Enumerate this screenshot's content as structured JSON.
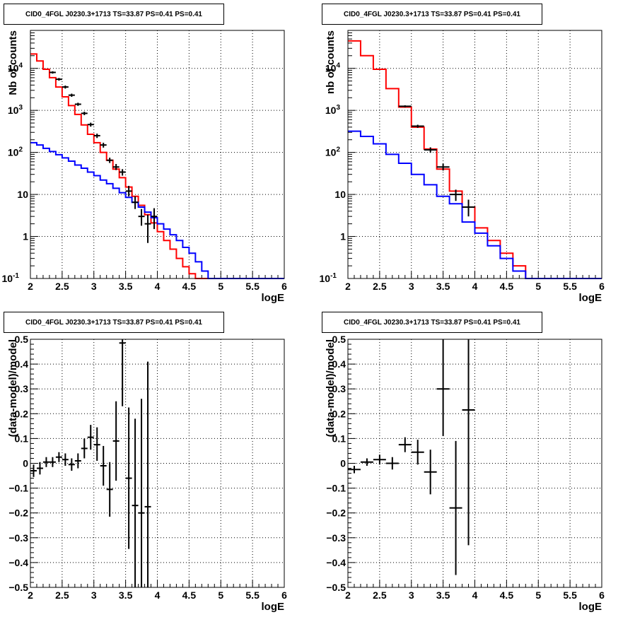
{
  "colors": {
    "data": "#000000",
    "model_total": "#ff0000",
    "model_component": "#0000ff",
    "grid": "#000000"
  },
  "chart_data": [
    {
      "type": "line",
      "title": "CID0_4FGL J0230.3+1713 TS=33.87 PS=0.41 PS=0.41",
      "xlabel": "logE",
      "ylabel": "Nb of counts",
      "xlim": [
        2,
        6
      ],
      "ylim": [
        0.1,
        80000
      ],
      "ylog": true,
      "grid": true,
      "x_ticks": [
        "2",
        "2.5",
        "3",
        "3.5",
        "4",
        "4.5",
        "5",
        "5.5",
        "6"
      ],
      "y_ticks": [
        {
          "v": 0.1,
          "label": "10",
          "exp": "-1"
        },
        {
          "v": 1,
          "label": "1"
        },
        {
          "v": 10,
          "label": "10"
        },
        {
          "v": 100,
          "label": "10",
          "exp": "2"
        },
        {
          "v": 1000,
          "label": "10",
          "exp": "3"
        },
        {
          "v": 10000,
          "label": "10",
          "exp": "4"
        }
      ],
      "bin_edges": [
        2.0,
        2.1,
        2.2,
        2.3,
        2.4,
        2.5,
        2.6,
        2.7,
        2.8,
        2.9,
        3.0,
        3.1,
        3.2,
        3.3,
        3.4,
        3.5,
        3.6,
        3.7,
        3.8,
        3.9,
        4.0,
        4.1,
        4.2,
        4.3,
        4.4,
        4.5,
        4.6,
        4.7,
        4.8,
        4.9,
        5.0,
        5.1,
        5.2,
        5.3,
        5.4,
        5.5,
        5.6,
        5.7,
        5.8,
        5.9,
        6.0
      ],
      "series": [
        {
          "role": "model_total",
          "values": [
            22000,
            15000,
            9500,
            6000,
            3600,
            2100,
            1300,
            800,
            450,
            270,
            170,
            100,
            65,
            40,
            25,
            15,
            9,
            5.5,
            3.3,
            2.1,
            1.3,
            0.8,
            0.5,
            0.3,
            0.19,
            0.13,
            0.1,
            0.1,
            0.1,
            0.1,
            0.1,
            0.1,
            0.1,
            0.1,
            0.1,
            0.1,
            0.1,
            0.1,
            0.1,
            0.1
          ]
        },
        {
          "role": "model_component",
          "values": [
            170,
            150,
            125,
            105,
            88,
            74,
            62,
            50,
            42,
            34,
            28,
            22,
            18,
            14,
            11,
            8.5,
            6.5,
            5,
            3.8,
            2.8,
            2,
            1.5,
            1.1,
            0.8,
            0.55,
            0.4,
            0.25,
            0.15,
            0.1,
            0.1,
            0.1,
            0.1,
            0.1,
            0.1,
            0.1,
            0.1,
            0.1,
            0.1,
            0.1,
            0.1
          ]
        },
        {
          "role": "data",
          "points": [
            {
              "x": 2.35,
              "y": 8000,
              "lo": 7500,
              "hi": 8500,
              "xw": 0.05
            },
            {
              "x": 2.45,
              "y": 5500,
              "lo": 5100,
              "hi": 5900,
              "xw": 0.05
            },
            {
              "x": 2.55,
              "y": 3600,
              "lo": 3300,
              "hi": 3900,
              "xw": 0.05
            },
            {
              "x": 2.65,
              "y": 2300,
              "lo": 2100,
              "hi": 2500,
              "xw": 0.05
            },
            {
              "x": 2.75,
              "y": 1400,
              "lo": 1280,
              "hi": 1520,
              "xw": 0.05
            },
            {
              "x": 2.85,
              "y": 850,
              "lo": 770,
              "hi": 930,
              "xw": 0.05
            },
            {
              "x": 2.95,
              "y": 460,
              "lo": 410,
              "hi": 510,
              "xw": 0.05
            },
            {
              "x": 3.05,
              "y": 250,
              "lo": 220,
              "hi": 280,
              "xw": 0.05
            },
            {
              "x": 3.15,
              "y": 150,
              "lo": 130,
              "hi": 170,
              "xw": 0.05
            },
            {
              "x": 3.25,
              "y": 65,
              "lo": 56,
              "hi": 75,
              "xw": 0.05
            },
            {
              "x": 3.35,
              "y": 45,
              "lo": 38,
              "hi": 53,
              "xw": 0.05
            },
            {
              "x": 3.45,
              "y": 34,
              "lo": 28,
              "hi": 40,
              "xw": 0.05
            },
            {
              "x": 3.55,
              "y": 12,
              "lo": 9,
              "hi": 16,
              "xw": 0.05
            },
            {
              "x": 3.65,
              "y": 6.5,
              "lo": 4.5,
              "hi": 9,
              "xw": 0.05
            },
            {
              "x": 3.75,
              "y": 3,
              "lo": 1.8,
              "hi": 4.5,
              "xw": 0.05
            },
            {
              "x": 3.85,
              "y": 2,
              "lo": 0.7,
              "hi": 3.3,
              "xw": 0.05
            },
            {
              "x": 3.95,
              "y": 3,
              "lo": 1.5,
              "hi": 4.7,
              "xw": 0.05
            }
          ]
        }
      ]
    },
    {
      "type": "line",
      "title": "CID0_4FGL J0230.3+1713 TS=33.87 PS=0.41 PS=0.41",
      "xlabel": "logE",
      "ylabel": "nb of counts",
      "xlim": [
        2,
        6
      ],
      "ylim": [
        0.1,
        80000
      ],
      "ylog": true,
      "grid": true,
      "x_ticks": [
        "2",
        "2.5",
        "3",
        "3.5",
        "4",
        "4.5",
        "5",
        "5.5",
        "6"
      ],
      "y_ticks": [
        {
          "v": 0.1,
          "label": "10",
          "exp": "-1"
        },
        {
          "v": 1,
          "label": "1"
        },
        {
          "v": 10,
          "label": "10"
        },
        {
          "v": 100,
          "label": "10",
          "exp": "2"
        },
        {
          "v": 1000,
          "label": "10",
          "exp": "3"
        },
        {
          "v": 10000,
          "label": "10",
          "exp": "4"
        }
      ],
      "bin_edges": [
        2.0,
        2.2,
        2.4,
        2.6,
        2.8,
        3.0,
        3.2,
        3.4,
        3.6,
        3.8,
        4.0,
        4.2,
        4.4,
        4.6,
        4.8,
        5.0,
        5.2,
        5.4,
        5.6,
        5.8,
        6.0
      ],
      "series": [
        {
          "role": "model_total",
          "values": [
            45000,
            20000,
            9500,
            3300,
            1200,
            400,
            120,
            40,
            12,
            5,
            1.6,
            0.8,
            0.4,
            0.2,
            0.1,
            0.1,
            0.1,
            0.1,
            0.1,
            0.1
          ]
        },
        {
          "role": "model_component",
          "values": [
            320,
            240,
            160,
            90,
            55,
            30,
            17,
            9,
            6,
            2.2,
            1.2,
            0.6,
            0.3,
            0.15,
            0.1,
            0.1,
            0.1,
            0.1,
            0.1,
            0.1
          ]
        },
        {
          "role": "data",
          "points": [
            {
              "x": 2.9,
              "y": 1250,
              "lo": 1180,
              "hi": 1320,
              "xw": 0.1
            },
            {
              "x": 3.1,
              "y": 420,
              "lo": 385,
              "hi": 455,
              "xw": 0.1
            },
            {
              "x": 3.3,
              "y": 115,
              "lo": 98,
              "hi": 132,
              "xw": 0.1
            },
            {
              "x": 3.5,
              "y": 45,
              "lo": 37,
              "hi": 54,
              "xw": 0.1
            },
            {
              "x": 3.7,
              "y": 10,
              "lo": 7,
              "hi": 13,
              "xw": 0.1
            },
            {
              "x": 3.9,
              "y": 5,
              "lo": 3,
              "hi": 7.5,
              "xw": 0.1
            }
          ]
        }
      ]
    },
    {
      "type": "scatter",
      "title": "CID0_4FGL J0230.3+1713 TS=33.87 PS=0.41 PS=0.41",
      "xlabel": "logE",
      "ylabel": "(data-model)/model",
      "xlim": [
        2,
        6
      ],
      "ylim": [
        -0.5,
        0.5
      ],
      "ylog": false,
      "grid": true,
      "x_ticks": [
        "2",
        "2.5",
        "3",
        "3.5",
        "4",
        "4.5",
        "5",
        "5.5",
        "6"
      ],
      "y_ticks": [
        {
          "v": -0.5,
          "label": "−0.5"
        },
        {
          "v": -0.4,
          "label": "−0.4"
        },
        {
          "v": -0.3,
          "label": "−0.3"
        },
        {
          "v": -0.2,
          "label": "−0.2"
        },
        {
          "v": -0.1,
          "label": "−0.1"
        },
        {
          "v": 0,
          "label": "0"
        },
        {
          "v": 0.1,
          "label": "0.1"
        },
        {
          "v": 0.2,
          "label": "0.2"
        },
        {
          "v": 0.3,
          "label": "0.3"
        },
        {
          "v": 0.4,
          "label": "0.4"
        },
        {
          "v": 0.5,
          "label": "0.5"
        }
      ],
      "series": [
        {
          "role": "data",
          "points": [
            {
              "x": 2.05,
              "y": -0.03,
              "lo": -0.055,
              "hi": -0.005,
              "xw": 0.05
            },
            {
              "x": 2.15,
              "y": -0.02,
              "lo": -0.045,
              "hi": 0.005,
              "xw": 0.05
            },
            {
              "x": 2.25,
              "y": 0.005,
              "lo": -0.015,
              "hi": 0.025,
              "xw": 0.05
            },
            {
              "x": 2.35,
              "y": 0.005,
              "lo": -0.015,
              "hi": 0.025,
              "xw": 0.05
            },
            {
              "x": 2.45,
              "y": 0.025,
              "lo": 0.005,
              "hi": 0.045,
              "xw": 0.05
            },
            {
              "x": 2.55,
              "y": 0.015,
              "lo": -0.01,
              "hi": 0.04,
              "xw": 0.05
            },
            {
              "x": 2.65,
              "y": -0.005,
              "lo": -0.03,
              "hi": 0.02,
              "xw": 0.05
            },
            {
              "x": 2.75,
              "y": 0.01,
              "lo": -0.02,
              "hi": 0.04,
              "xw": 0.05
            },
            {
              "x": 2.85,
              "y": 0.06,
              "lo": 0.02,
              "hi": 0.1,
              "xw": 0.05
            },
            {
              "x": 2.95,
              "y": 0.105,
              "lo": 0.055,
              "hi": 0.155,
              "xw": 0.05
            },
            {
              "x": 3.05,
              "y": 0.075,
              "lo": 0.01,
              "hi": 0.145,
              "xw": 0.05
            },
            {
              "x": 3.15,
              "y": -0.01,
              "lo": -0.09,
              "hi": 0.07,
              "xw": 0.05
            },
            {
              "x": 3.25,
              "y": -0.105,
              "lo": -0.215,
              "hi": 0.005,
              "xw": 0.05
            },
            {
              "x": 3.35,
              "y": 0.09,
              "lo": -0.07,
              "hi": 0.25,
              "xw": 0.05
            },
            {
              "x": 3.45,
              "y": 0.485,
              "lo": 0.23,
              "hi": 0.74,
              "xw": 0.05
            },
            {
              "x": 3.55,
              "y": -0.06,
              "lo": -0.345,
              "hi": 0.225,
              "xw": 0.05
            },
            {
              "x": 3.65,
              "y": -0.17,
              "lo": -0.52,
              "hi": 0.18,
              "xw": 0.05
            },
            {
              "x": 3.75,
              "y": -0.2,
              "lo": -0.66,
              "hi": 0.26,
              "xw": 0.05
            },
            {
              "x": 3.85,
              "y": -0.175,
              "lo": -0.76,
              "hi": 0.41,
              "xw": 0.05
            }
          ]
        }
      ]
    },
    {
      "type": "scatter",
      "title": "CID0_4FGL J0230.3+1713 TS=33.87 PS=0.41 PS=0.41",
      "xlabel": "logE",
      "ylabel": "(data-model)/model",
      "xlim": [
        2,
        6
      ],
      "ylim": [
        -0.5,
        0.5
      ],
      "ylog": false,
      "grid": true,
      "x_ticks": [
        "2",
        "2.5",
        "3",
        "3.5",
        "4",
        "4.5",
        "5",
        "5.5",
        "6"
      ],
      "y_ticks": [
        {
          "v": -0.5,
          "label": "−0.5"
        },
        {
          "v": -0.4,
          "label": "−0.4"
        },
        {
          "v": -0.3,
          "label": "−0.3"
        },
        {
          "v": -0.2,
          "label": "−0.2"
        },
        {
          "v": -0.1,
          "label": "−0.1"
        },
        {
          "v": 0,
          "label": "0"
        },
        {
          "v": 0.1,
          "label": "0.1"
        },
        {
          "v": 0.2,
          "label": "0.2"
        },
        {
          "v": 0.3,
          "label": "0.3"
        },
        {
          "v": 0.4,
          "label": "0.4"
        },
        {
          "v": 0.5,
          "label": "0.5"
        }
      ],
      "series": [
        {
          "role": "data",
          "points": [
            {
              "x": 2.1,
              "y": -0.025,
              "lo": -0.04,
              "hi": -0.01,
              "xw": 0.1
            },
            {
              "x": 2.3,
              "y": 0.005,
              "lo": -0.01,
              "hi": 0.02,
              "xw": 0.1
            },
            {
              "x": 2.5,
              "y": 0.015,
              "lo": -0.005,
              "hi": 0.035,
              "xw": 0.1
            },
            {
              "x": 2.7,
              "y": 0.0,
              "lo": -0.025,
              "hi": 0.025,
              "xw": 0.1
            },
            {
              "x": 2.9,
              "y": 0.075,
              "lo": 0.045,
              "hi": 0.105,
              "xw": 0.1
            },
            {
              "x": 3.1,
              "y": 0.045,
              "lo": -0.005,
              "hi": 0.095,
              "xw": 0.1
            },
            {
              "x": 3.3,
              "y": -0.035,
              "lo": -0.125,
              "hi": 0.055,
              "xw": 0.1
            },
            {
              "x": 3.5,
              "y": 0.3,
              "lo": 0.11,
              "hi": 0.54,
              "xw": 0.1
            },
            {
              "x": 3.7,
              "y": -0.18,
              "lo": -0.45,
              "hi": 0.09,
              "xw": 0.1
            },
            {
              "x": 3.9,
              "y": 0.215,
              "lo": -0.33,
              "hi": 0.76,
              "xw": 0.1
            }
          ]
        }
      ]
    }
  ]
}
